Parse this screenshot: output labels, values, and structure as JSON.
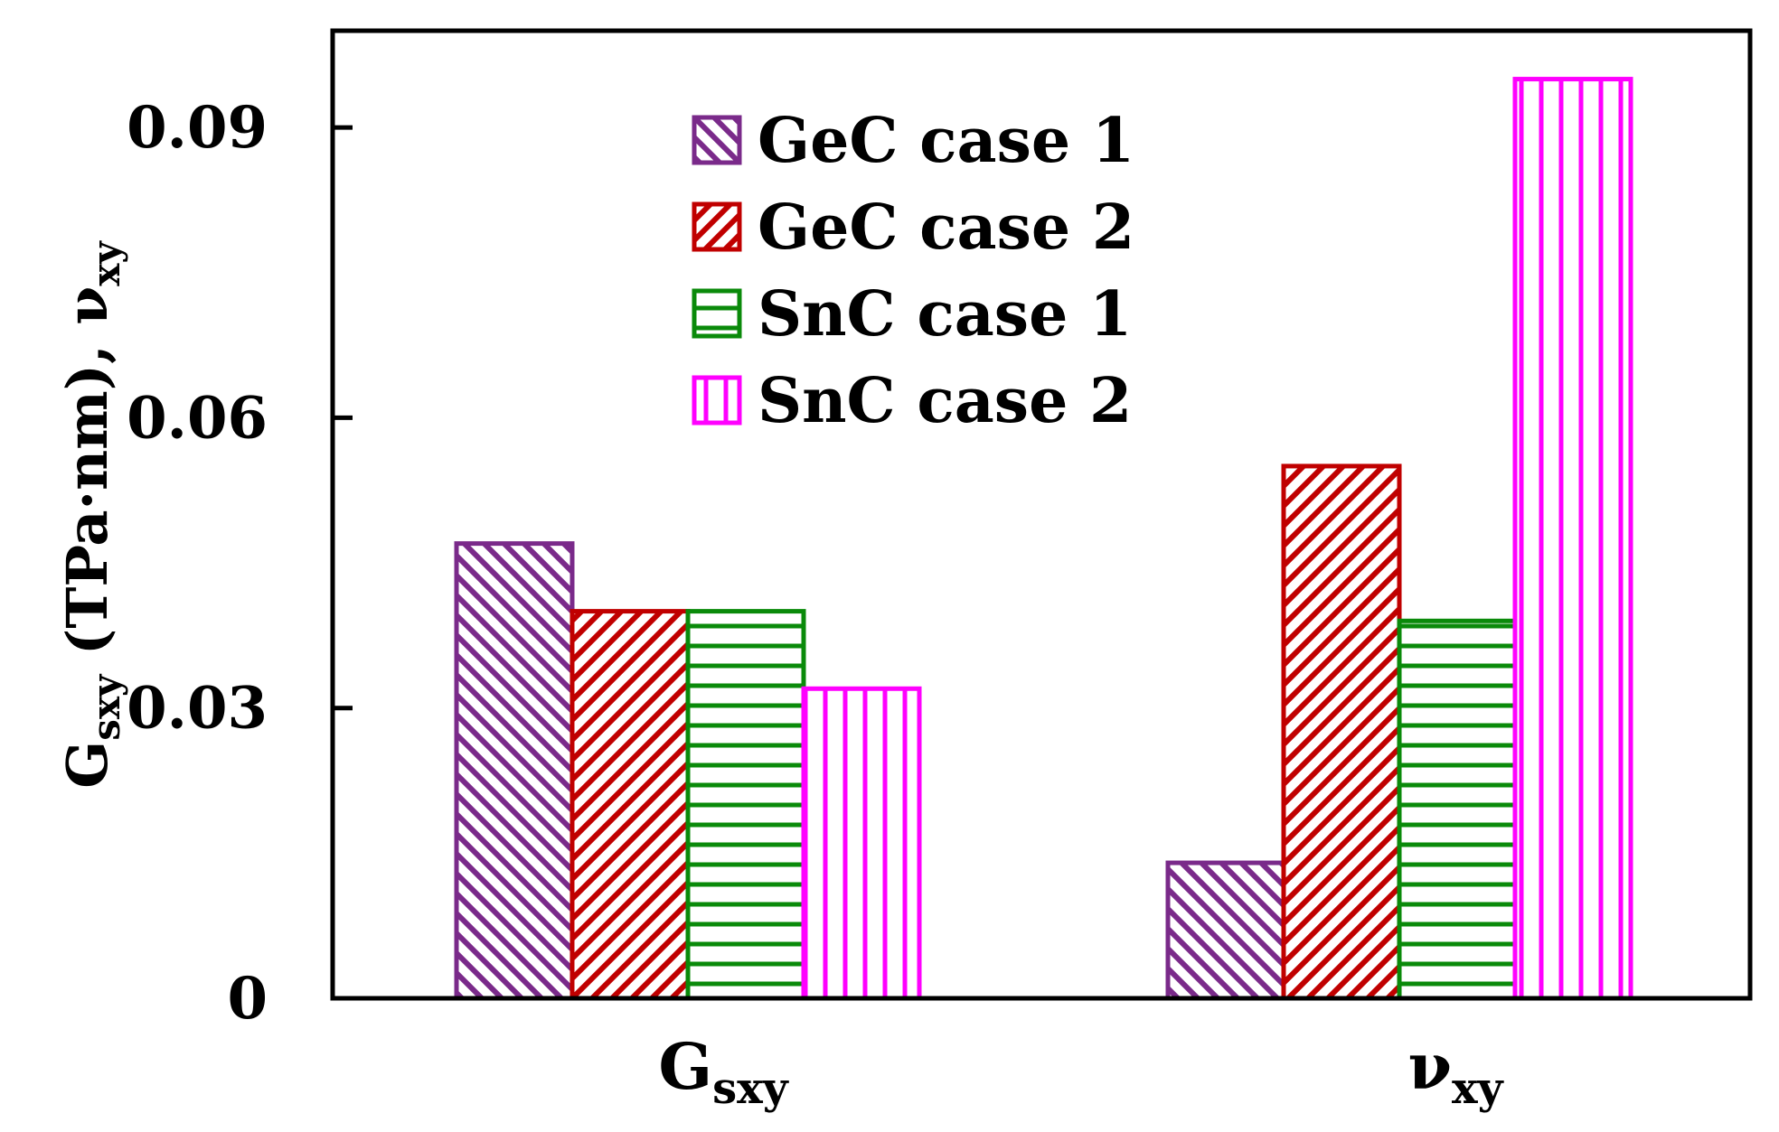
{
  "chart_data": {
    "type": "bar",
    "title": "",
    "ylabel": {
      "parts": [
        {
          "text": "G",
          "sub": false
        },
        {
          "text": "sxy",
          "sub": true
        },
        {
          "text": " (TPa·nm), ν",
          "sub": false
        },
        {
          "text": "xy",
          "sub": true
        }
      ]
    },
    "xlabel": "",
    "ylim": [
      0,
      0.1
    ],
    "yticks": [
      {
        "value": 0,
        "label": "0"
      },
      {
        "value": 0.03,
        "label": "0.03"
      },
      {
        "value": 0.06,
        "label": "0.06"
      },
      {
        "value": 0.09,
        "label": "0.09"
      }
    ],
    "categories": [
      {
        "id": "gsxy",
        "main": "G",
        "sub": "sxy"
      },
      {
        "id": "vxy",
        "main": "ν",
        "sub": "xy"
      }
    ],
    "legend_position": "top-center",
    "series": [
      {
        "name": "GeC case 1",
        "color": "#7a2a8a",
        "pattern": "diag-back",
        "values": [
          0.047,
          0.014
        ]
      },
      {
        "name": "GeC case 2",
        "color": "#c00000",
        "pattern": "diag-fwd",
        "values": [
          0.04,
          0.055
        ]
      },
      {
        "name": "SnC case 1",
        "color": "#0a8a0a",
        "pattern": "horizontal",
        "values": [
          0.04,
          0.039
        ]
      },
      {
        "name": "SnC case 2",
        "color": "#ff00ff",
        "pattern": "vertical",
        "values": [
          0.032,
          0.095
        ]
      }
    ]
  }
}
